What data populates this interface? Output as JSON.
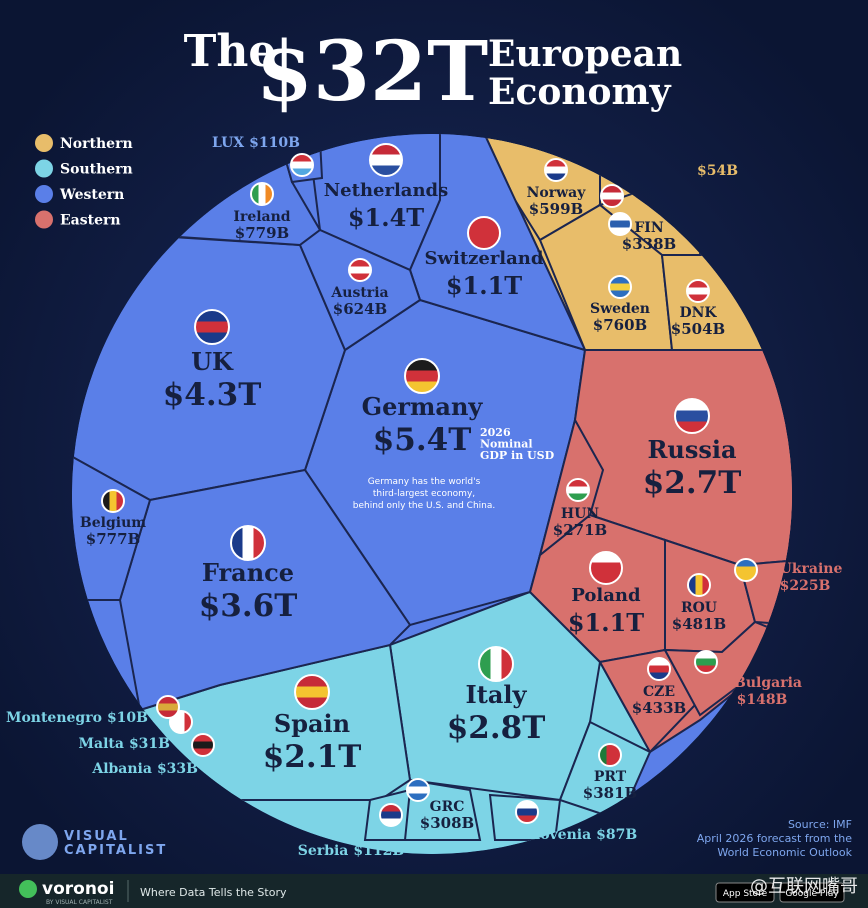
{
  "chart_data": {
    "type": "voronoi",
    "title": {
      "lead": "The",
      "amount": "$32T",
      "rest": [
        "European",
        "Economy"
      ]
    },
    "groups": [
      {
        "name": "Northern",
        "color": "#e8bd6a",
        "categories": [
          "Norway",
          "FIN",
          "Sweden",
          "DNK",
          null
        ],
        "values": [
          599,
          338,
          760,
          504,
          54
        ],
        "value_labels": [
          "$599B",
          "$338B",
          "$760B",
          "$504B",
          "$54B"
        ]
      },
      {
        "name": "Southern",
        "color": "#7dd4e6",
        "categories": [
          "Italy",
          "Spain",
          "PRT",
          "GRC",
          "Serbia",
          "Slovenia",
          "Albania",
          "Malta",
          "Montenegro"
        ],
        "values": [
          2800,
          2100,
          381,
          308,
          112,
          87,
          33,
          31,
          10
        ],
        "value_labels": [
          "$2.8T",
          "$2.1T",
          "$381B",
          "$308B",
          "$112B",
          "$87B",
          "$33B",
          "$31B",
          "$10B"
        ]
      },
      {
        "name": "Western",
        "color": "#5a7fe8",
        "categories": [
          "Germany",
          "UK",
          "France",
          "Netherlands",
          "Switzerland",
          "Ireland",
          "Belgium",
          "Austria",
          "LUX"
        ],
        "values": [
          5400,
          4300,
          3600,
          1400,
          1100,
          779,
          777,
          624,
          110
        ],
        "value_labels": [
          "$5.4T",
          "$4.3T",
          "$3.6T",
          "$1.4T",
          "$1.1T",
          "$779B",
          "$777B",
          "$624B",
          "$110B"
        ]
      },
      {
        "name": "Eastern",
        "color": "#d8716d",
        "categories": [
          "Russia",
          "Poland",
          "ROU",
          "CZE",
          "HUN",
          "Ukraine",
          "Bulgaria"
        ],
        "values": [
          2700,
          1100,
          481,
          433,
          271,
          225,
          148
        ],
        "value_labels": [
          "$2.7T",
          "$1.1T",
          "$481B",
          "$433B",
          "$271B",
          "$225B",
          "$148B"
        ]
      }
    ],
    "note": [
      "2026",
      "Nominal",
      "GDP in USD"
    ],
    "description": [
      "Germany has the world's",
      "third-largest economy,",
      "behind only the U.S. and China."
    ],
    "source": [
      "Source: IMF",
      "April 2026 forecast from the",
      "World Economic Outlook"
    ],
    "brand": [
      "VISUAL",
      "CAPITALIST"
    ],
    "footer": {
      "logo": "voronoi",
      "byline": "BY VISUAL CAPITALIST",
      "tagline": "Where Data Tells the Story",
      "stores": [
        "App Store",
        "Google Play"
      ],
      "watermark": "@互联网嘴哥"
    }
  }
}
